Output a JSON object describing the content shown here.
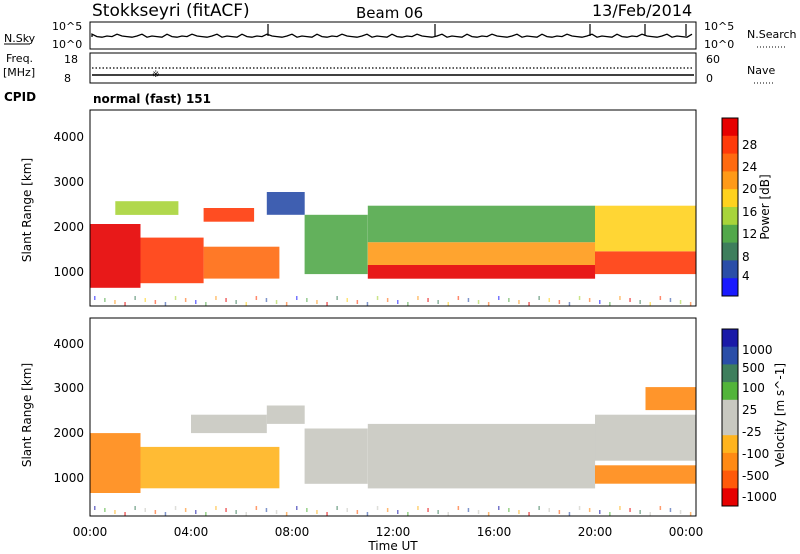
{
  "header": {
    "station": "Stokkseyri (fitACF)",
    "beam": "Beam 06",
    "date": "13/Feb/2014"
  },
  "status_panel": {
    "nsky_label": "N.Sky",
    "nsearch_label": "N.Search",
    "noise_ticks": [
      "10^5",
      "10^0"
    ],
    "freq_label": "Freq.",
    "freq_unit": "[MHz]",
    "freq_ticks": [
      "18",
      "8"
    ],
    "nave_label": "Nave",
    "nave_ticks": [
      "60",
      "0"
    ],
    "cpid_label": "CPID",
    "cpid_value": "normal (fast) 151"
  },
  "colors": {
    "power": [
      "#1a1aff",
      "#2a4ea8",
      "#3e7e5c",
      "#52a84a",
      "#a8d43a",
      "#ffd21e",
      "#ff9a18",
      "#ff6a10",
      "#ff3a0a",
      "#e60000"
    ],
    "velocity": [
      "#1a1aa8",
      "#2a4ea8",
      "#3e7e5c",
      "#52b43a",
      "#c8c8c0",
      "#c8c8c0",
      "#ffb41e",
      "#ff8a14",
      "#ff5a0a",
      "#e60000"
    ],
    "noise_fill": "#e8e8e8"
  },
  "chart_data": [
    {
      "type": "heatmap",
      "name": "Power",
      "xlabel": "",
      "ylabel": "Slant Range [km]",
      "xlim": [
        "00:00",
        "24:00"
      ],
      "ylim": [
        200,
        4500
      ],
      "y_ticks": [
        "4000",
        "3000",
        "2000",
        "1000"
      ],
      "colorbar_label": "Power [dB]",
      "colorbar_ticks": [
        "28",
        "24",
        "20",
        "16",
        "12",
        "8",
        "4"
      ],
      "bands": [
        {
          "t0": 0.0,
          "t1": 2.0,
          "r0": 600,
          "r1": 2000,
          "level": 9
        },
        {
          "t0": 2.0,
          "t1": 4.5,
          "r0": 700,
          "r1": 1700,
          "level": 8
        },
        {
          "t0": 4.5,
          "t1": 7.5,
          "r0": 800,
          "r1": 1500,
          "level": 7
        },
        {
          "t0": 1.0,
          "t1": 3.5,
          "r0": 2200,
          "r1": 2500,
          "level": 4
        },
        {
          "t0": 4.5,
          "t1": 6.5,
          "r0": 2050,
          "r1": 2350,
          "level": 8
        },
        {
          "t0": 7.0,
          "t1": 8.5,
          "r0": 2200,
          "r1": 2700,
          "level": 1
        },
        {
          "t0": 8.5,
          "t1": 11.0,
          "r0": 900,
          "r1": 2200,
          "level": 3
        },
        {
          "t0": 11.0,
          "t1": 20.0,
          "r0": 800,
          "r1": 1100,
          "level": 9
        },
        {
          "t0": 11.0,
          "t1": 20.0,
          "r0": 1100,
          "r1": 1600,
          "level": 6
        },
        {
          "t0": 11.0,
          "t1": 20.0,
          "r0": 1600,
          "r1": 2400,
          "level": 3
        },
        {
          "t0": 20.0,
          "t1": 24.0,
          "r0": 900,
          "r1": 1400,
          "level": 8
        },
        {
          "t0": 20.0,
          "t1": 24.0,
          "r0": 1400,
          "r1": 2400,
          "level": 5
        }
      ]
    },
    {
      "type": "heatmap",
      "name": "Velocity",
      "xlabel": "Time UT",
      "ylabel": "Slant Range [km]",
      "xlim": [
        "00:00",
        "24:00"
      ],
      "ylim": [
        200,
        4500
      ],
      "x_ticks": [
        "00:00",
        "04:00",
        "08:00",
        "12:00",
        "16:00",
        "20:00",
        "00:00"
      ],
      "y_ticks": [
        "4000",
        "3000",
        "2000",
        "1000"
      ],
      "colorbar_label": "Velocity [m s^-1]",
      "colorbar_ticks": [
        "1000",
        "500",
        "100",
        "25",
        "-25",
        "-100",
        "-500",
        "-1000"
      ],
      "bands": [
        {
          "t0": 0.0,
          "t1": 2.0,
          "r0": 700,
          "r1": 2000,
          "level": 7
        },
        {
          "t0": 2.0,
          "t1": 7.5,
          "r0": 800,
          "r1": 1700,
          "level": 6
        },
        {
          "t0": 4.0,
          "t1": 7.0,
          "r0": 2000,
          "r1": 2400,
          "level": 4
        },
        {
          "t0": 7.0,
          "t1": 8.5,
          "r0": 2200,
          "r1": 2600,
          "level": 4
        },
        {
          "t0": 8.5,
          "t1": 11.0,
          "r0": 900,
          "r1": 2100,
          "level": 4
        },
        {
          "t0": 11.0,
          "t1": 20.0,
          "r0": 800,
          "r1": 2200,
          "level": 4
        },
        {
          "t0": 20.0,
          "t1": 24.0,
          "r0": 900,
          "r1": 1300,
          "level": 7
        },
        {
          "t0": 20.0,
          "t1": 24.0,
          "r0": 1400,
          "r1": 2400,
          "level": 4
        },
        {
          "t0": 22.0,
          "t1": 24.0,
          "r0": 2500,
          "r1": 3000,
          "level": 7
        }
      ]
    }
  ]
}
